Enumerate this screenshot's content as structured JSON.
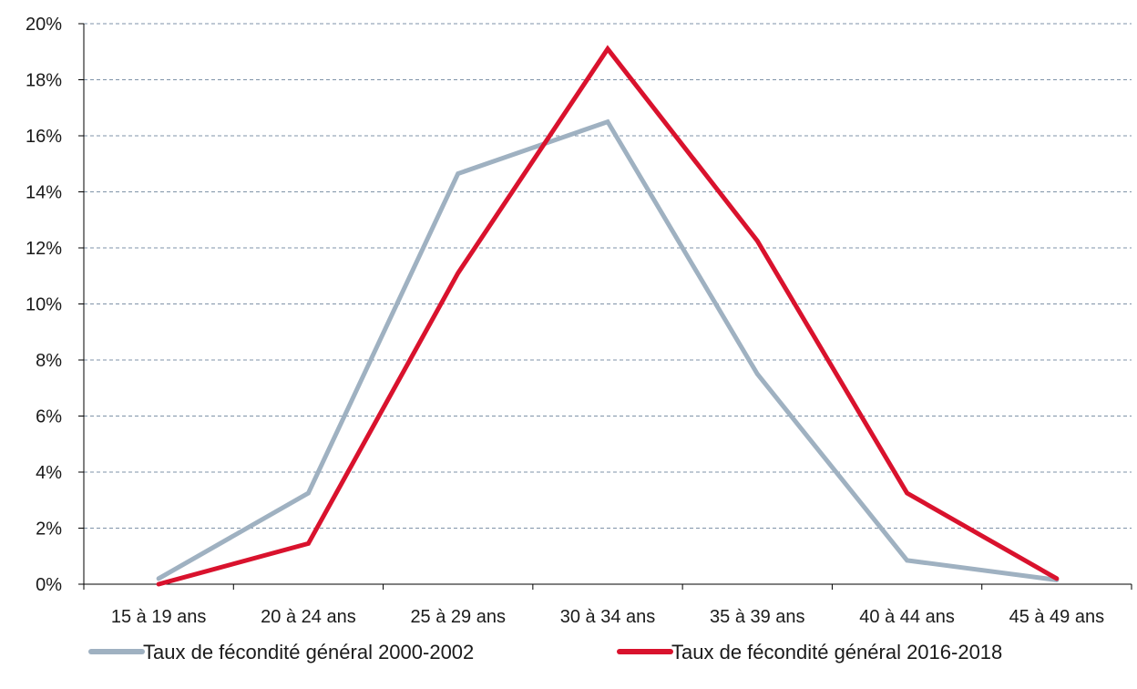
{
  "chart_data": {
    "type": "line",
    "categories": [
      "15 à 19 ans",
      "20 à 24 ans",
      "25 à 29 ans",
      "30 à 34 ans",
      "35 à 39 ans",
      "40 à 44 ans",
      "45 à 49 ans"
    ],
    "series": [
      {
        "name": "Taux de fécondité général 2000-2002",
        "color": "#9fb1c1",
        "values": [
          0.2,
          3.25,
          14.65,
          16.5,
          7.5,
          0.85,
          0.15
        ]
      },
      {
        "name": "Taux de fécondité général 2016-2018",
        "color": "#d9122d",
        "values": [
          0.0,
          1.45,
          11.1,
          19.1,
          12.25,
          3.25,
          0.2
        ]
      }
    ],
    "y_ticks": [
      "0%",
      "2%",
      "4%",
      "6%",
      "8%",
      "10%",
      "12%",
      "14%",
      "16%",
      "18%",
      "20%"
    ],
    "ylim": [
      0,
      20
    ],
    "grid": true,
    "legend_position": "bottom"
  }
}
